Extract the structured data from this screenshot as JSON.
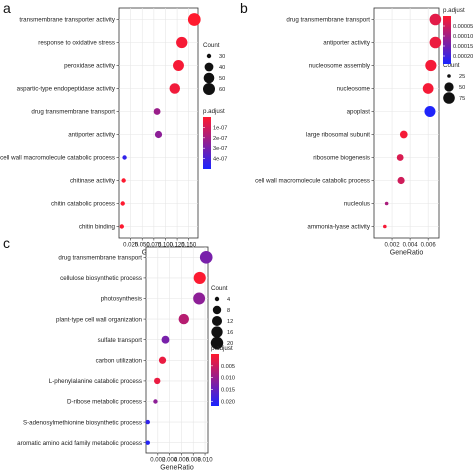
{
  "chart_data": [
    {
      "type": "scatter",
      "panel_label": "a",
      "xlabel": "GeneRatio",
      "xlim": [
        0,
        0.17
      ],
      "x_ticks": [
        "0.025",
        "0.050",
        "0.075",
        "0.100",
        "0.125",
        "0.150"
      ],
      "x_tick_values": [
        0.025,
        0.05,
        0.075,
        0.1,
        0.125,
        0.15
      ],
      "categories": [
        "transmembrane transporter activity",
        "response to oxidative stress",
        "peroxidase activity",
        "aspartic-type endopeptidase activity",
        "drug transmembrane transport",
        "antiporter activity",
        "cell wall macromolecule catabolic process",
        "chitinase activity",
        "chitin catabolic process",
        "chitin binding"
      ],
      "points": [
        {
          "x": 0.162,
          "count": 66,
          "p_adjust": 1e-09
        },
        {
          "x": 0.135,
          "count": 55,
          "p_adjust": 2e-08
        },
        {
          "x": 0.128,
          "count": 52,
          "p_adjust": 2e-08
        },
        {
          "x": 0.12,
          "count": 49,
          "p_adjust": 3e-08
        },
        {
          "x": 0.082,
          "count": 33,
          "p_adjust": 2.2e-07
        },
        {
          "x": 0.085,
          "count": 34,
          "p_adjust": 2.5e-07
        },
        {
          "x": 0.012,
          "count": 5,
          "p_adjust": 4.5e-07
        },
        {
          "x": 0.01,
          "count": 4,
          "p_adjust": 5e-09
        },
        {
          "x": 0.008,
          "count": 3,
          "p_adjust": 5e-09
        },
        {
          "x": 0.006,
          "count": 2,
          "p_adjust": 5e-09
        }
      ],
      "size_legend": {
        "title": "Count",
        "values": [
          30,
          40,
          50,
          60
        ]
      },
      "color_legend": {
        "title": "p.adjust",
        "labels": [
          "1e-07",
          "2e-07",
          "3e-07",
          "4e-07"
        ],
        "label_values": [
          1e-07,
          2e-07,
          3e-07,
          4e-07
        ],
        "range": [
          0,
          5e-07
        ]
      },
      "colors": {
        "low": "#ff1a2e",
        "high": "#1a24ff"
      }
    },
    {
      "type": "scatter",
      "panel_label": "b",
      "xlabel": "GeneRatio",
      "xlim": [
        0,
        0.0072
      ],
      "x_ticks": [
        "0.002",
        "0.004",
        "0.006"
      ],
      "x_tick_values": [
        0.002,
        0.004,
        0.006
      ],
      "categories": [
        "drug transmembrane transport",
        "antiporter activity",
        "nucleosome assembly",
        "nucleosome",
        "apoplast",
        "large ribosomal subunit",
        "ribosome biogenesis",
        "cell wall macromolecule catabolic process",
        "nucleolus",
        "ammonia-lyase activity"
      ],
      "points": [
        {
          "x": 0.0068,
          "count": 75,
          "p_adjust": 3e-05
        },
        {
          "x": 0.0068,
          "count": 75,
          "p_adjust": 2e-05
        },
        {
          "x": 0.0063,
          "count": 70,
          "p_adjust": 1e-05
        },
        {
          "x": 0.006,
          "count": 65,
          "p_adjust": 1e-05
        },
        {
          "x": 0.0062,
          "count": 68,
          "p_adjust": 0.000235
        },
        {
          "x": 0.0033,
          "count": 38,
          "p_adjust": 1e-05
        },
        {
          "x": 0.0029,
          "count": 33,
          "p_adjust": 4e-05
        },
        {
          "x": 0.003,
          "count": 35,
          "p_adjust": 5e-05
        },
        {
          "x": 0.0014,
          "count": 15,
          "p_adjust": 9e-05
        },
        {
          "x": 0.0012,
          "count": 12,
          "p_adjust": 1e-05
        }
      ],
      "size_legend": {
        "title": "Count",
        "values": [
          25,
          50,
          75
        ]
      },
      "color_legend": {
        "title": "p.adjust",
        "labels": [
          "0.00005",
          "0.00010",
          "0.00015",
          "0.00020"
        ],
        "label_values": [
          5e-05,
          0.0001,
          0.00015,
          0.0002
        ],
        "range": [
          0,
          0.00024
        ]
      },
      "colors": {
        "low": "#ff1a2e",
        "high": "#1a24ff"
      }
    },
    {
      "type": "scatter",
      "panel_label": "c",
      "xlabel": "GeneRatio",
      "xlim": [
        0,
        0.0105
      ],
      "x_ticks": [
        "0.002",
        "0.004",
        "0.006",
        "0.008",
        "0.010"
      ],
      "x_tick_values": [
        0.002,
        0.004,
        0.006,
        0.008,
        0.01
      ],
      "categories": [
        "drug transmembrane transport",
        "cellulose biosynthetic process",
        "photosynthesis",
        "plant-type cell wall organization",
        "sulfate transport",
        "carbon utilization",
        "L-phenylalanine catabolic process",
        "D-ribose metabolic process",
        "S-adenosylmethionine biosynthetic process",
        "aromatic amino acid family metabolic process"
      ],
      "points": [
        {
          "x": 0.0102,
          "count": 21,
          "p_adjust": 0.013
        },
        {
          "x": 0.0091,
          "count": 19,
          "p_adjust": 0.0003
        },
        {
          "x": 0.009,
          "count": 18,
          "p_adjust": 0.011
        },
        {
          "x": 0.0064,
          "count": 13,
          "p_adjust": 0.007
        },
        {
          "x": 0.0033,
          "count": 7,
          "p_adjust": 0.013
        },
        {
          "x": 0.0028,
          "count": 6,
          "p_adjust": 0.002
        },
        {
          "x": 0.0019,
          "count": 5,
          "p_adjust": 0.002
        },
        {
          "x": 0.0016,
          "count": 4,
          "p_adjust": 0.011
        },
        {
          "x": 0.0003,
          "count": 2,
          "p_adjust": 0.02
        },
        {
          "x": 0.0003,
          "count": 2,
          "p_adjust": 0.021
        }
      ],
      "size_legend": {
        "title": "Count",
        "values": [
          4,
          8,
          12,
          16,
          20
        ]
      },
      "color_legend": {
        "title": "p.adjust",
        "labels": [
          "0.005",
          "0.010",
          "0.015",
          "0.020"
        ],
        "label_values": [
          0.005,
          0.01,
          0.015,
          0.02
        ],
        "range": [
          0,
          0.022
        ]
      },
      "colors": {
        "low": "#ff1a2e",
        "high": "#1a24ff"
      }
    }
  ]
}
